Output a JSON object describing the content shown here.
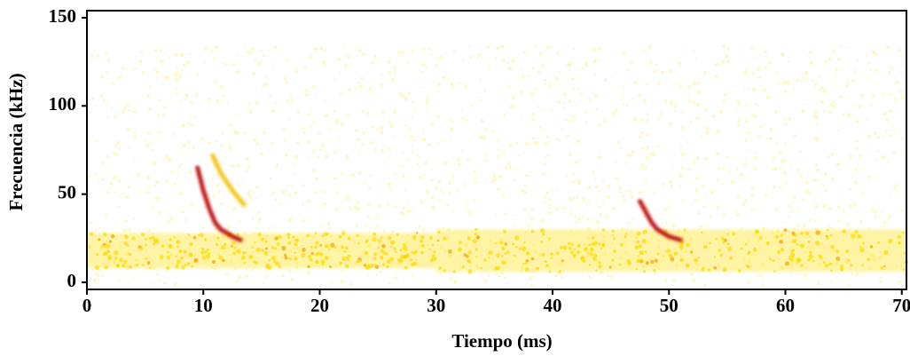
{
  "chart_data": {
    "type": "spectrogram",
    "xlabel": "Tiempo (ms)",
    "ylabel": "Frecuencia (kHz)",
    "xlim": [
      0,
      70.4
    ],
    "ylim": [
      -4,
      154
    ],
    "xticks": [
      0,
      10,
      20,
      30,
      40,
      50,
      60,
      70
    ],
    "yticks": [
      0,
      50,
      100,
      150
    ],
    "bands": [
      {
        "x": [
          0,
          30
        ],
        "y": [
          8,
          28
        ]
      },
      {
        "x": [
          30,
          70.4
        ],
        "y": [
          6,
          30
        ]
      }
    ],
    "band_color": "#ffe000",
    "series": [
      {
        "color": "#b80000",
        "x": [
          9.5,
          10,
          10.5,
          11,
          11.5,
          12,
          12.5,
          13.2
        ],
        "values": [
          65,
          52,
          42,
          34,
          30,
          28,
          26,
          24
        ]
      },
      {
        "color": "#f4c000",
        "x": [
          10.8,
          11.5,
          12.5,
          13.5
        ],
        "values": [
          72,
          62,
          52,
          44
        ]
      },
      {
        "color": "#b80000",
        "x": [
          47.5,
          48,
          48.5,
          49,
          49.5,
          50,
          51
        ],
        "values": [
          46,
          40,
          34,
          30,
          28,
          26,
          24
        ]
      }
    ]
  }
}
